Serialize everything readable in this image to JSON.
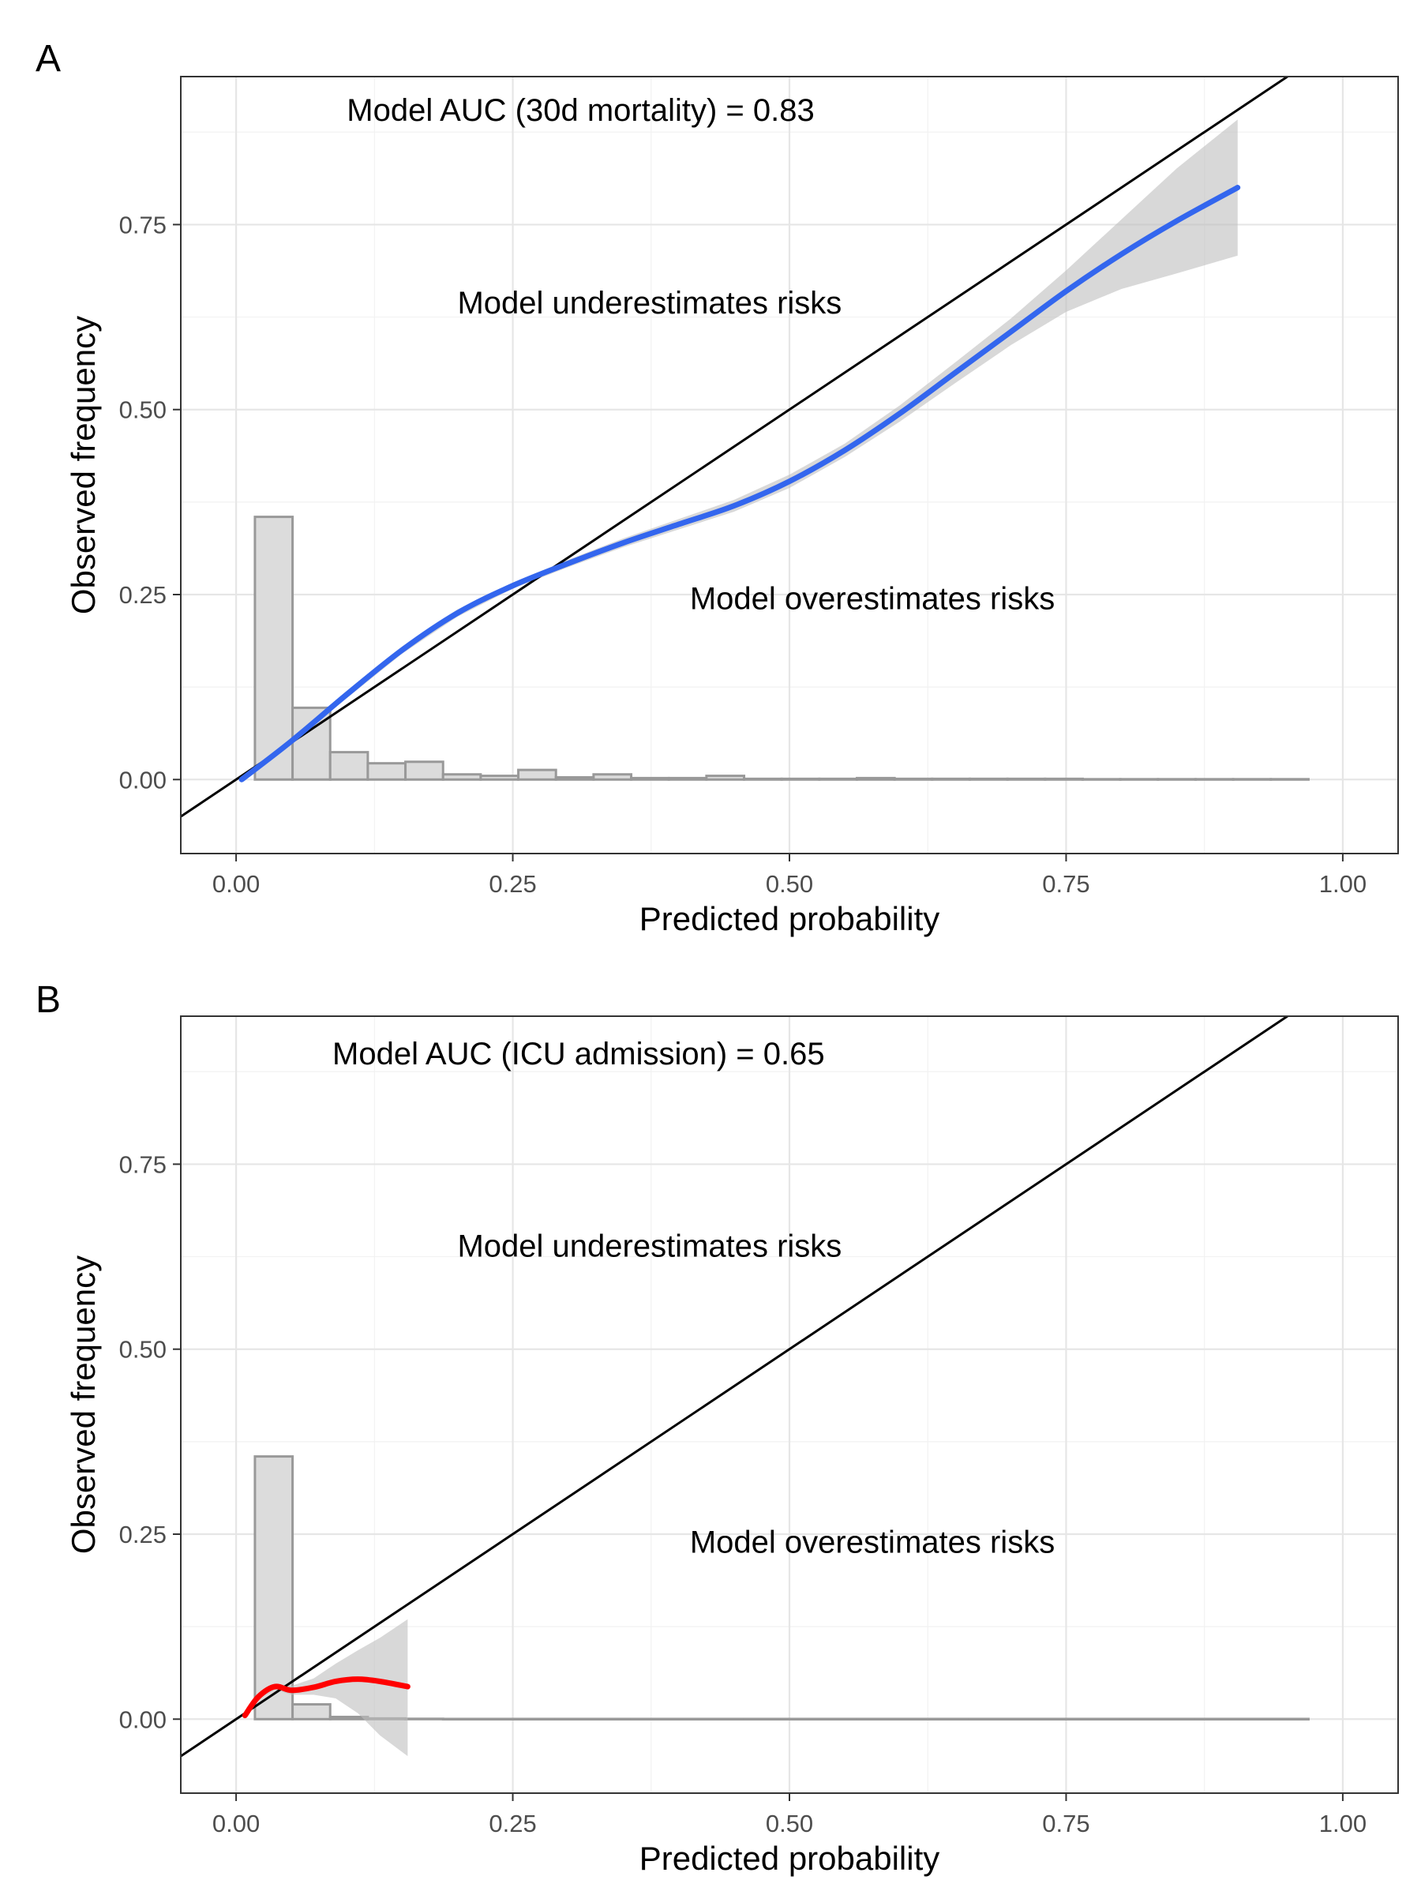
{
  "chart_data": [
    {
      "type": "line",
      "panel_label": "A",
      "xlabel": "Predicted probability",
      "ylabel": "Observed frequency",
      "xlim": [
        -0.05,
        1.05
      ],
      "ylim": [
        -0.1,
        0.95
      ],
      "x_ticks": [
        0.0,
        0.25,
        0.5,
        0.75,
        1.0
      ],
      "x_tick_labels": [
        "0.00",
        "0.25",
        "0.50",
        "0.75",
        "1.00"
      ],
      "y_ticks": [
        0.0,
        0.25,
        0.5,
        0.75
      ],
      "y_tick_labels": [
        "0.00",
        "0.25",
        "0.50",
        "0.75"
      ],
      "grid": true,
      "annotations": [
        {
          "text": "Model AUC (30d mortality) = 0.83",
          "x": 0.1,
          "y": 0.905
        },
        {
          "text": "Model underestimates risks",
          "x": 0.2,
          "y": 0.645
        },
        {
          "text": "Model overestimates risks",
          "x": 0.41,
          "y": 0.245
        }
      ],
      "reference_line": {
        "slope": 1,
        "intercept": 0,
        "color": "#000000"
      },
      "histogram": {
        "bin_width": 0.034,
        "bin_starts": [
          0.017,
          0.051,
          0.085,
          0.119,
          0.153,
          0.187,
          0.221,
          0.255,
          0.289,
          0.323,
          0.357,
          0.391,
          0.425,
          0.459,
          0.493,
          0.527,
          0.561,
          0.595,
          0.629,
          0.663,
          0.697,
          0.731,
          0.765,
          0.799,
          0.833,
          0.867,
          0.901,
          0.935
        ],
        "heights": [
          0.355,
          0.097,
          0.037,
          0.022,
          0.024,
          0.007,
          0.005,
          0.013,
          0.003,
          0.007,
          0.002,
          0.002,
          0.005,
          0.001,
          0.001,
          0.001,
          0.002,
          0.001,
          0.001,
          0.001,
          0.001,
          0.001,
          0.0005,
          0.0005,
          0.0005,
          0.0005,
          0.0005,
          0.0005
        ],
        "fill": "#dcdcdc"
      },
      "smooth": {
        "color": "#3366ee",
        "x": [
          0.005,
          0.05,
          0.1,
          0.15,
          0.2,
          0.25,
          0.3,
          0.35,
          0.4,
          0.45,
          0.5,
          0.55,
          0.6,
          0.65,
          0.7,
          0.75,
          0.8,
          0.85,
          0.905
        ],
        "y": [
          0.0,
          0.052,
          0.115,
          0.175,
          0.225,
          0.262,
          0.292,
          0.32,
          0.345,
          0.37,
          0.403,
          0.445,
          0.495,
          0.55,
          0.605,
          0.66,
          0.71,
          0.755,
          0.8
        ],
        "ci_lower": [
          0.0,
          0.05,
          0.11,
          0.17,
          0.22,
          0.258,
          0.287,
          0.314,
          0.338,
          0.362,
          0.394,
          0.436,
          0.484,
          0.536,
          0.587,
          0.632,
          0.663,
          0.684,
          0.708
        ],
        "ci_upper": [
          0.0,
          0.054,
          0.12,
          0.18,
          0.23,
          0.266,
          0.297,
          0.326,
          0.352,
          0.378,
          0.412,
          0.454,
          0.506,
          0.564,
          0.623,
          0.688,
          0.757,
          0.826,
          0.892
        ]
      }
    },
    {
      "type": "line",
      "panel_label": "B",
      "xlabel": "Predicted probability",
      "ylabel": "Observed frequency",
      "xlim": [
        -0.05,
        1.05
      ],
      "ylim": [
        -0.1,
        0.95
      ],
      "x_ticks": [
        0.0,
        0.25,
        0.5,
        0.75,
        1.0
      ],
      "x_tick_labels": [
        "0.00",
        "0.25",
        "0.50",
        "0.75",
        "1.00"
      ],
      "y_ticks": [
        0.0,
        0.25,
        0.5,
        0.75
      ],
      "y_tick_labels": [
        "0.00",
        "0.25",
        "0.50",
        "0.75"
      ],
      "grid": true,
      "annotations": [
        {
          "text": "Model AUC (ICU admission) = 0.65",
          "x": 0.087,
          "y": 0.9
        },
        {
          "text": "Model underestimates risks",
          "x": 0.2,
          "y": 0.64
        },
        {
          "text": "Model overestimates risks",
          "x": 0.41,
          "y": 0.24
        }
      ],
      "reference_line": {
        "slope": 1,
        "intercept": 0,
        "color": "#000000"
      },
      "histogram": {
        "bin_width": 0.034,
        "bin_starts": [
          0.017,
          0.051,
          0.085,
          0.119,
          0.153,
          0.187,
          0.221,
          0.255,
          0.289,
          0.323,
          0.357,
          0.391,
          0.425,
          0.459,
          0.493,
          0.527,
          0.561,
          0.595,
          0.629,
          0.663,
          0.697,
          0.731,
          0.765,
          0.799,
          0.833,
          0.867,
          0.901,
          0.935
        ],
        "heights": [
          0.355,
          0.02,
          0.003,
          0.001,
          0.0005,
          0.0003,
          0.0003,
          0.0003,
          0.0003,
          0.0003,
          0.0003,
          0.0003,
          0.0003,
          0.0003,
          0.0003,
          0.0003,
          0.0003,
          0.0003,
          0.0003,
          0.0003,
          0.0003,
          0.0003,
          0.0003,
          0.0003,
          0.0003,
          0.0003,
          0.0003,
          0.0003
        ],
        "fill": "#dcdcdc"
      },
      "smooth": {
        "color": "#ff0000",
        "x": [
          0.008,
          0.02,
          0.035,
          0.05,
          0.07,
          0.09,
          0.11,
          0.13,
          0.155
        ],
        "y": [
          0.005,
          0.03,
          0.044,
          0.039,
          0.043,
          0.051,
          0.054,
          0.051,
          0.044
        ],
        "ci_lower": [
          0.004,
          0.027,
          0.04,
          0.033,
          0.033,
          0.028,
          0.008,
          -0.022,
          -0.05
        ],
        "ci_upper": [
          0.006,
          0.033,
          0.048,
          0.045,
          0.055,
          0.075,
          0.093,
          0.11,
          0.135
        ]
      }
    }
  ]
}
